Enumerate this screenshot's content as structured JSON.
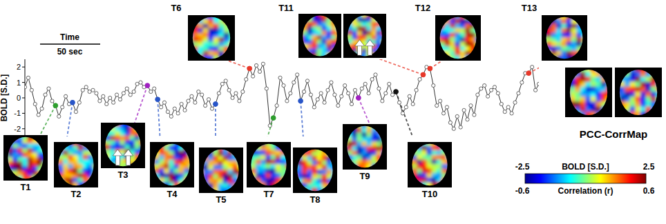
{
  "chart_data": {
    "type": "line",
    "y_label": "BOLD [S.D.]",
    "ylim": [
      -2.5,
      2.5
    ],
    "yticks": [
      -2,
      -1,
      0,
      1,
      2
    ],
    "color": "#333333",
    "marker": "circle",
    "tick_labels": "y",
    "values": [
      0.7,
      1.3,
      0.5,
      -0.4,
      -1.1,
      -0.7,
      0.2,
      0.6,
      -0.2,
      -0.5,
      -1.2,
      -0.6,
      0.1,
      -0.4,
      -0.3,
      -0.9,
      -0.3,
      0.5,
      0.7,
      0.4,
      0.5,
      0.3,
      -0.2,
      0.1,
      -0.4,
      0.0,
      -0.3,
      0.2,
      -0.1,
      0.3,
      0.6,
      0.2,
      0.4,
      0.9,
      1.0,
      0.7,
      0.8,
      0.4,
      0.6,
      -0.1,
      -0.6,
      -0.3,
      -0.9,
      -1.2,
      -0.7,
      -1.0,
      -0.4,
      -0.8,
      -0.2,
      0.1,
      -0.3,
      0.4,
      0.2,
      -0.5,
      -0.1,
      -0.7,
      -0.4,
      0.3,
      0.9,
      1.1,
      0.5,
      0.0,
      0.3,
      -0.2,
      0.4,
      1.2,
      1.9,
      1.4,
      2.1,
      1.7,
      2.2,
      0.6,
      -1.8,
      -1.3,
      -0.5,
      1.3,
      0.8,
      -0.2,
      0.3,
      1.0,
      1.5,
      -0.2,
      0.4,
      1.1,
      0.2,
      -0.6,
      -0.1,
      0.3,
      -0.3,
      0.5,
      1.0,
      0.2,
      -0.5,
      0.1,
      0.8,
      0.3,
      -0.4,
      0.5,
      0.0,
      0.6,
      0.9,
      0.3,
      1.2,
      1.5,
      0.6,
      -0.2,
      0.3,
      0.9,
      0.2,
      0.4,
      -0.3,
      -1.0,
      -0.6,
      0.1,
      -0.4,
      0.5,
      1.2,
      1.5,
      2.0,
      1.9,
      0.8,
      -0.5,
      -0.2,
      -1.0,
      -0.6,
      -1.6,
      -2.0,
      -1.2,
      -1.9,
      -0.8,
      -1.4,
      -0.5,
      -1.1,
      0.2,
      0.6,
      0.8,
      0.1,
      0.5,
      0.7,
      0.3,
      -0.4,
      -0.9,
      -0.6,
      -1.0,
      -0.3,
      0.3,
      1.0,
      1.6,
      1.6,
      2.0,
      0.5,
      0.9
    ],
    "markers": [
      {
        "label": "T1",
        "index": 9,
        "color": "#2e9e2e"
      },
      {
        "label": "T2",
        "index": 14,
        "color": "#2855c8"
      },
      {
        "label": "T3",
        "index": 36,
        "color": "#a020c0",
        "arrows": true
      },
      {
        "label": "T4",
        "index": 39,
        "color": "#2855c8"
      },
      {
        "label": "T5",
        "index": 56,
        "color": "#2855c8"
      },
      {
        "label": "T6",
        "index": 66,
        "color": "#e8382a"
      },
      {
        "label": "T7",
        "index": 73,
        "color": "#2e9e2e"
      },
      {
        "label": "T8",
        "index": 81,
        "color": "#2855c8"
      },
      {
        "label": "T9",
        "index": 98,
        "color": "#a020c0"
      },
      {
        "label": "T10",
        "index": 109,
        "color": "#111111"
      },
      {
        "label": "T11",
        "index": 117,
        "color": "#e8382a",
        "arrows": true
      },
      {
        "label": "T12",
        "index": 119,
        "color": "#e8382a"
      },
      {
        "label": "T13",
        "index": 148,
        "color": "#e8382a"
      }
    ],
    "scale_bar": {
      "label": "Time",
      "length_label": "50 sec"
    },
    "reference_map": {
      "label": "PCC-CorrMap"
    },
    "colorbar": {
      "title": "BOLD [S.D.]",
      "range": [
        -2.5,
        2.5
      ],
      "subtitle": "Correlation (r)",
      "range2": [
        -0.6,
        0.6
      ]
    }
  }
}
